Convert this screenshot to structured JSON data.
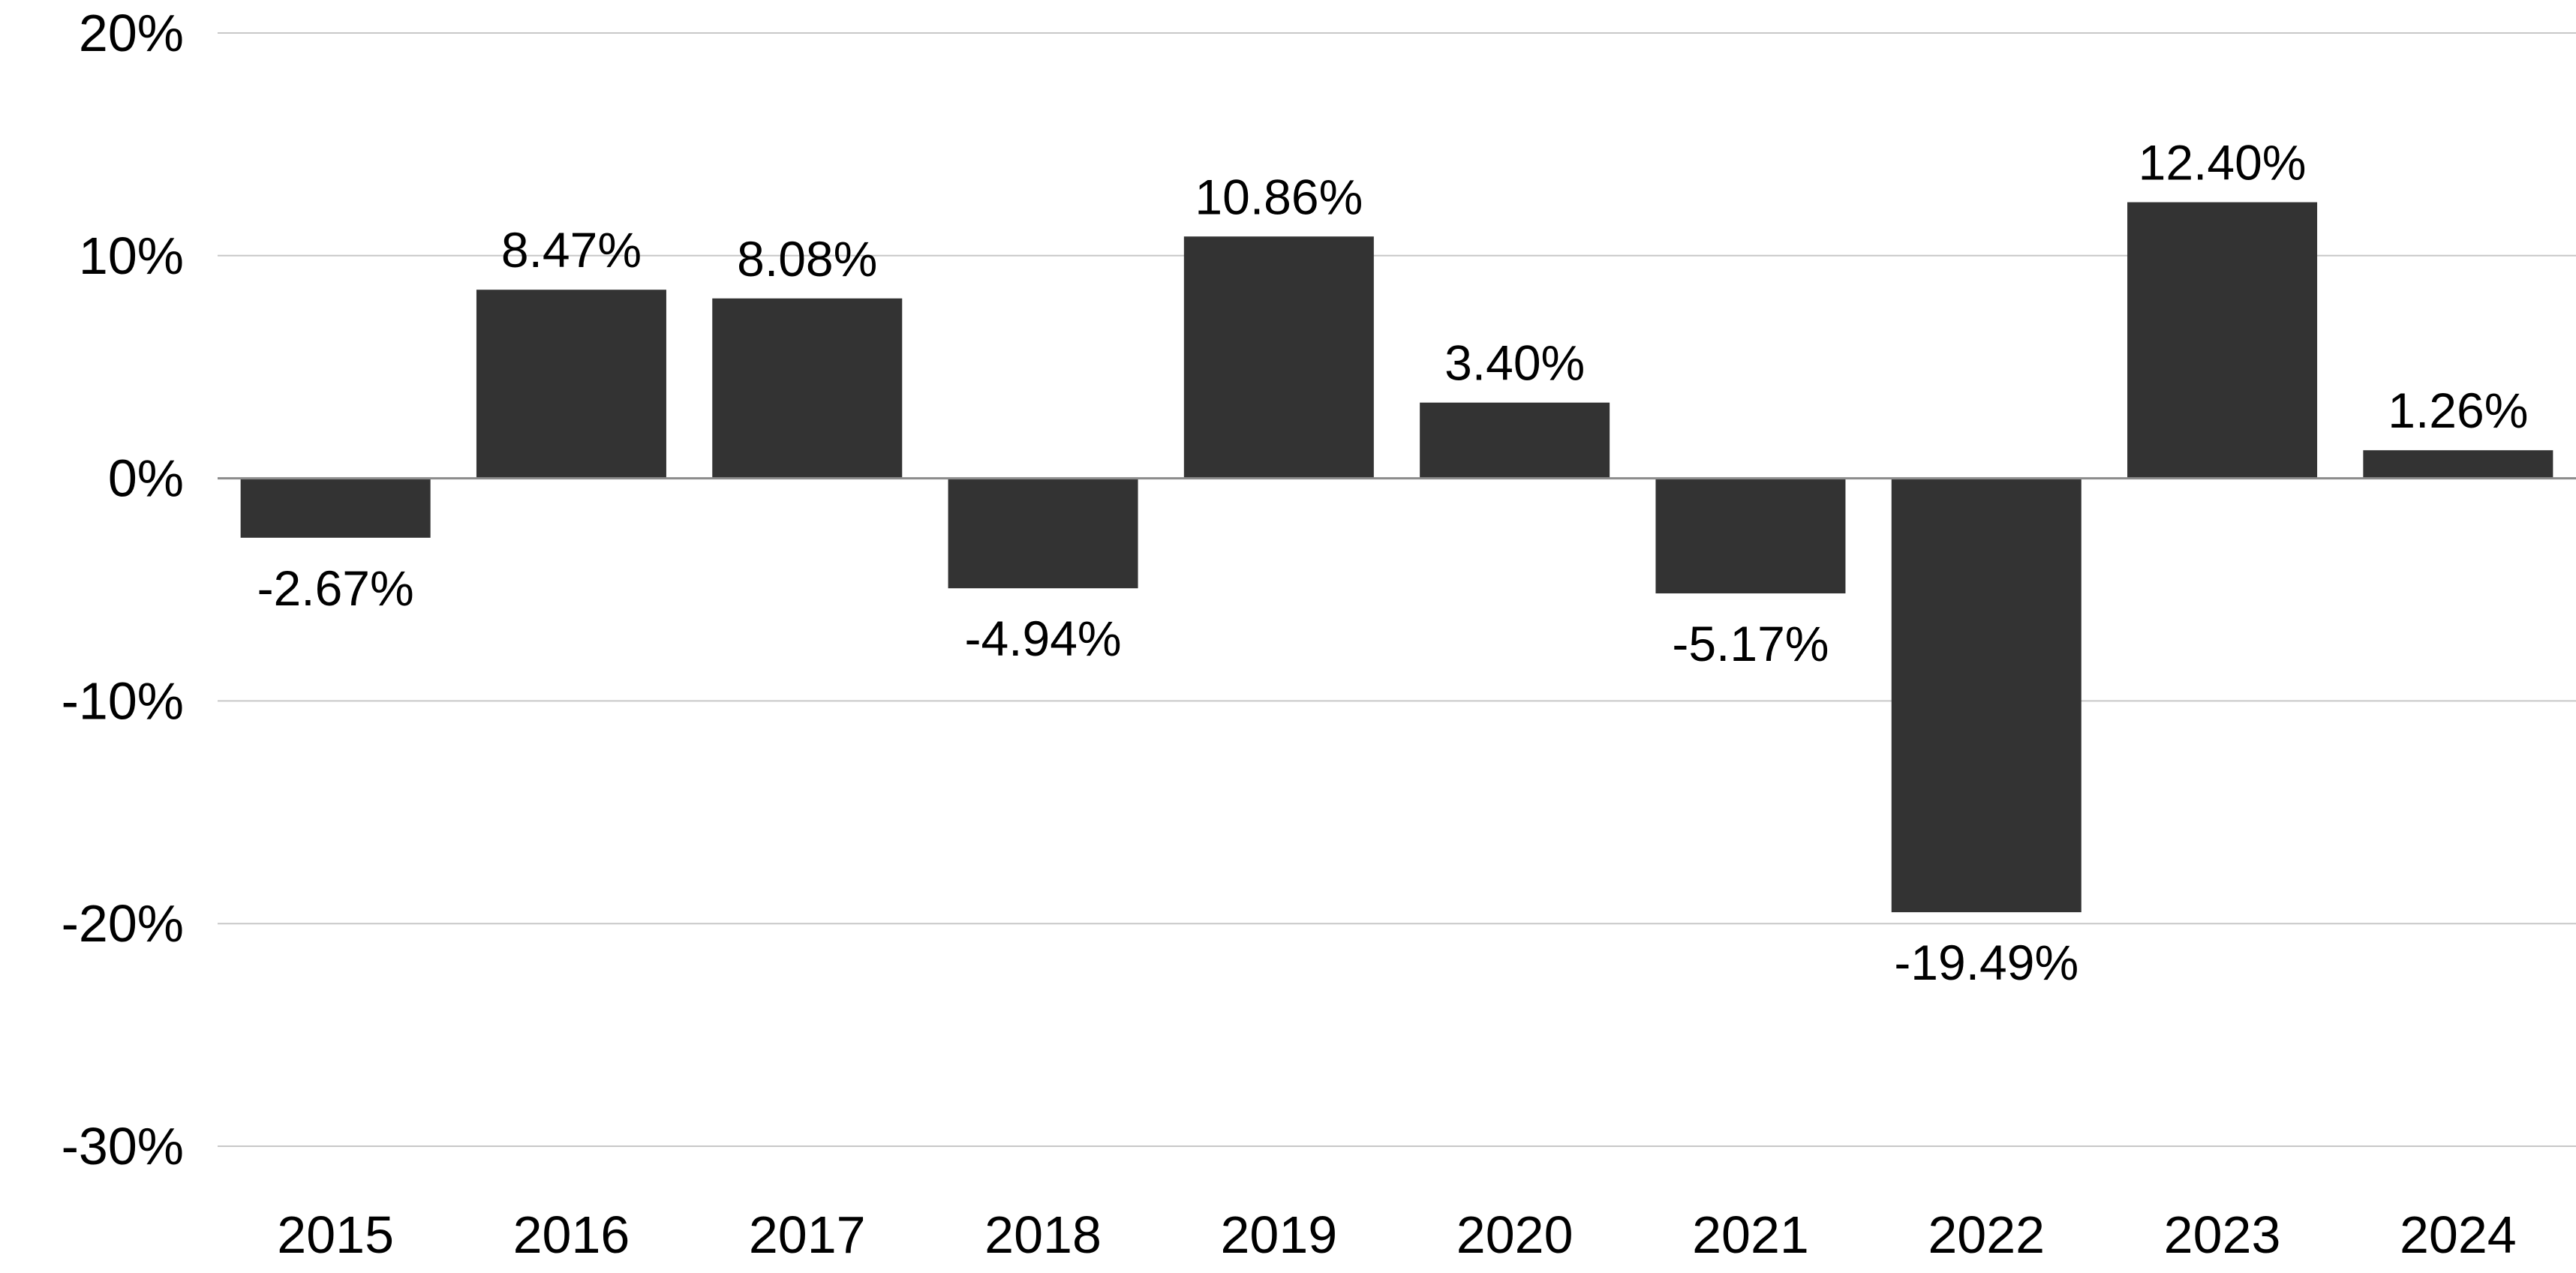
{
  "chart_data": {
    "type": "bar",
    "title": "",
    "xlabel": "",
    "ylabel": "",
    "categories": [
      "2015",
      "2016",
      "2017",
      "2018",
      "2019",
      "2020",
      "2021",
      "2022",
      "2023",
      "2024"
    ],
    "values": [
      -2.67,
      8.47,
      8.08,
      -4.94,
      10.86,
      3.4,
      -5.17,
      -19.49,
      12.4,
      1.26
    ],
    "data_labels": [
      "-2.67%",
      "8.47%",
      "8.08%",
      "-4.94%",
      "10.86%",
      "3.40%",
      "-5.17%",
      "-19.49%",
      "12.40%",
      "1.26%"
    ],
    "ylim": [
      -30,
      20
    ],
    "yticks": [
      20,
      10,
      0,
      -10,
      -20,
      -30
    ],
    "ytick_labels": [
      "20%",
      "10%",
      "0%",
      "-10%",
      "-20%",
      "-30%"
    ],
    "grid": true,
    "legend": "none",
    "colors": {
      "bar": "#333333",
      "grid": "#c8c8c8",
      "zero_line": "#8c8c8c",
      "text": "#000000"
    }
  }
}
